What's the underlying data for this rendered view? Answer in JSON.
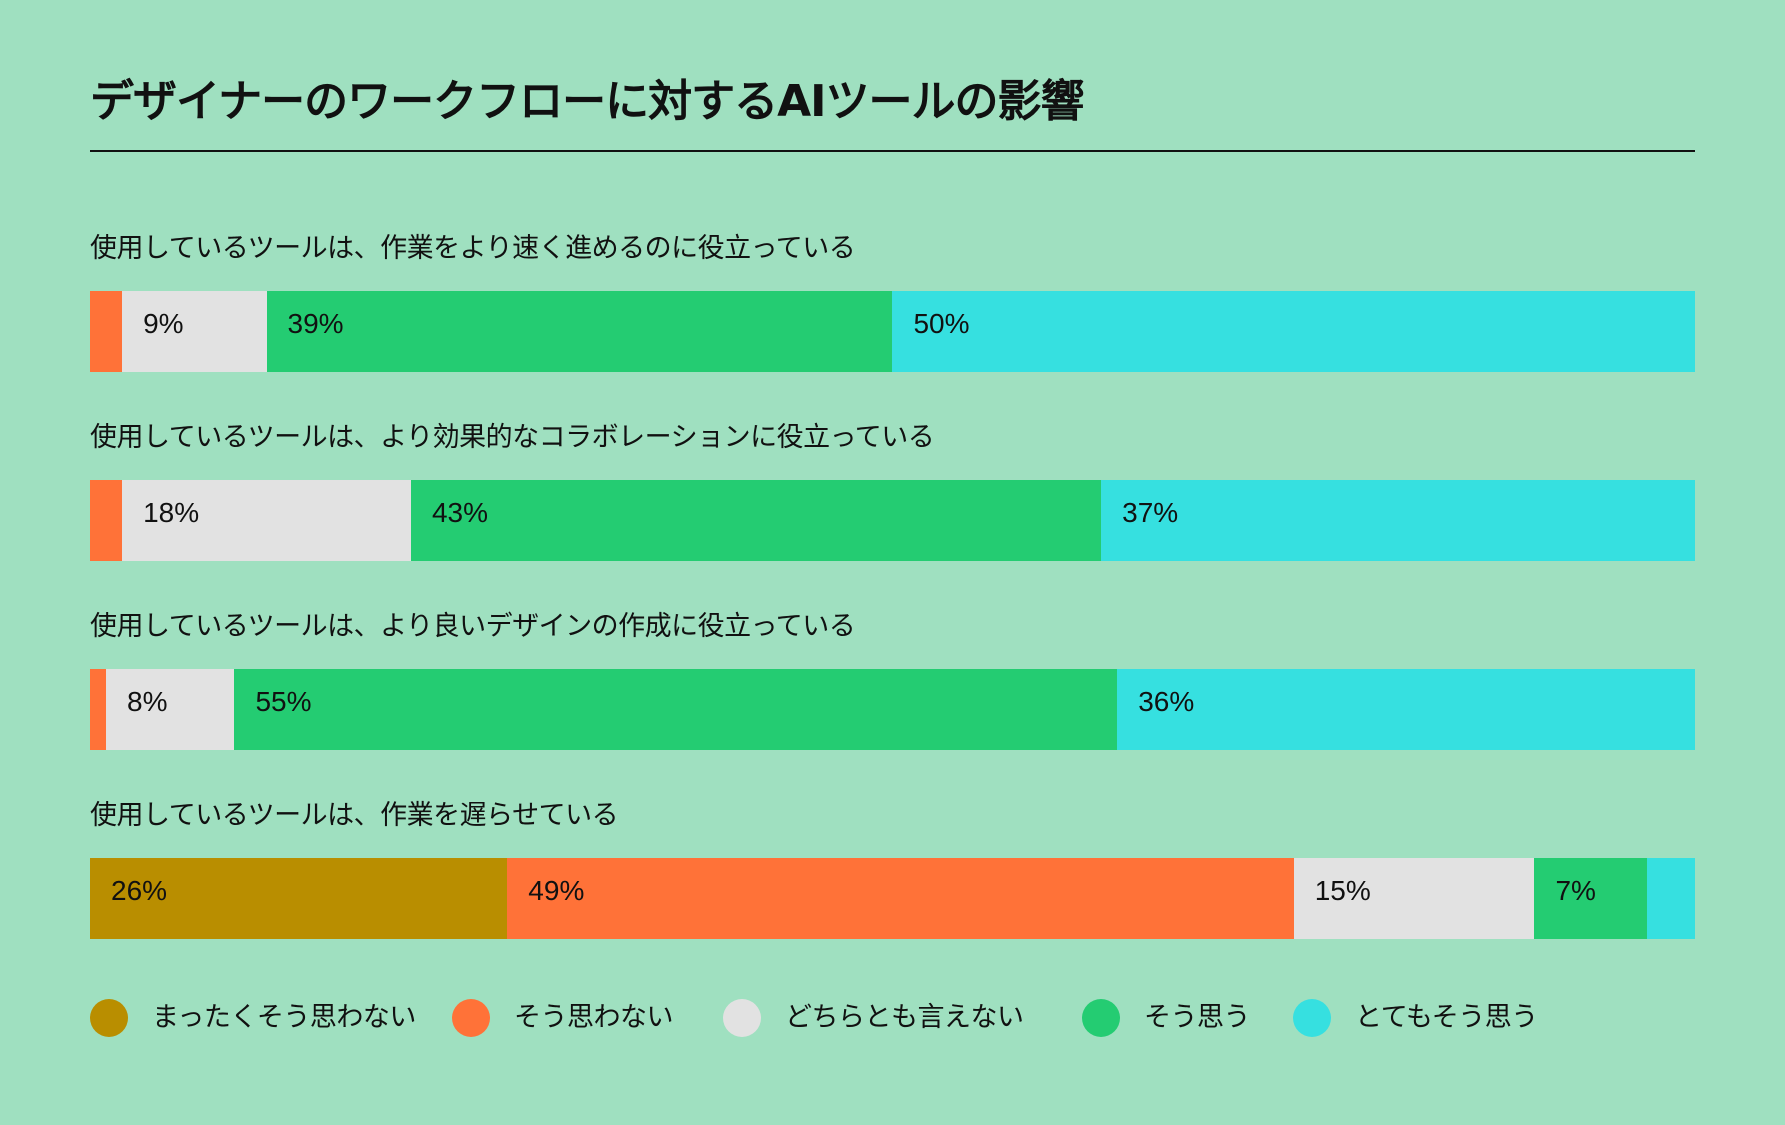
{
  "title": "デザイナーのワークフローに対するAIツールの影響",
  "colors": {
    "background": "#9fe0c0",
    "strongly_disagree": "#b98e00",
    "disagree": "#ff7238",
    "neutral": "#e2e2e2",
    "agree": "#24cc72",
    "strongly_agree": "#36e0e0"
  },
  "legend": [
    {
      "label": "まったくそう思わない",
      "color": "#b98e00"
    },
    {
      "label": "そう思わない",
      "color": "#ff7238"
    },
    {
      "label": "どちらとも言えない",
      "color": "#e2e2e2"
    },
    {
      "label": "そう思う",
      "color": "#24cc72"
    },
    {
      "label": "とてもそう思う",
      "color": "#36e0e0"
    }
  ],
  "questions": [
    {
      "label": "使用しているツールは、作業をより速く進めるのに役立っている",
      "segments": [
        {
          "key": "strongly_disagree",
          "value": 0,
          "text": ""
        },
        {
          "key": "disagree",
          "value": 2,
          "text": ""
        },
        {
          "key": "neutral",
          "value": 9,
          "text": "9%"
        },
        {
          "key": "agree",
          "value": 39,
          "text": "39%"
        },
        {
          "key": "strongly_agree",
          "value": 50,
          "text": "50%"
        }
      ]
    },
    {
      "label": "使用しているツールは、より効果的なコラボレーションに役立っている",
      "segments": [
        {
          "key": "strongly_disagree",
          "value": 0,
          "text": ""
        },
        {
          "key": "disagree",
          "value": 2,
          "text": ""
        },
        {
          "key": "neutral",
          "value": 18,
          "text": "18%"
        },
        {
          "key": "agree",
          "value": 43,
          "text": "43%"
        },
        {
          "key": "strongly_agree",
          "value": 37,
          "text": "37%"
        }
      ]
    },
    {
      "label": "使用しているツールは、より良いデザインの作成に役立っている",
      "segments": [
        {
          "key": "strongly_disagree",
          "value": 0,
          "text": ""
        },
        {
          "key": "disagree",
          "value": 1,
          "text": ""
        },
        {
          "key": "neutral",
          "value": 8,
          "text": "8%"
        },
        {
          "key": "agree",
          "value": 55,
          "text": "55%"
        },
        {
          "key": "strongly_agree",
          "value": 36,
          "text": "36%"
        }
      ]
    },
    {
      "label": "使用しているツールは、作業を遅らせている",
      "segments": [
        {
          "key": "strongly_disagree",
          "value": 26,
          "text": "26%"
        },
        {
          "key": "disagree",
          "value": 49,
          "text": "49%"
        },
        {
          "key": "neutral",
          "value": 15,
          "text": "15%"
        },
        {
          "key": "agree",
          "value": 7,
          "text": "7%"
        },
        {
          "key": "strongly_agree",
          "value": 3,
          "text": ""
        }
      ]
    }
  ],
  "chart_data": {
    "type": "bar",
    "orientation": "horizontal",
    "stacked": true,
    "normalized": true,
    "title": "デザイナーのワークフローに対するAIツールの影響",
    "xlabel": "",
    "ylabel": "",
    "xlim": [
      0,
      100
    ],
    "grid": false,
    "legend_position": "bottom",
    "categories": [
      "使用しているツールは、作業をより速く進めるのに役立っている",
      "使用しているツールは、より効果的なコラボレーションに役立っている",
      "使用しているツールは、より良いデザインの作成に役立っている",
      "使用しているツールは、作業を遅らせている"
    ],
    "series": [
      {
        "name": "まったくそう思わない",
        "color": "#b98e00",
        "values": [
          0,
          0,
          0,
          26
        ]
      },
      {
        "name": "そう思わない",
        "color": "#ff7238",
        "values": [
          2,
          2,
          1,
          49
        ]
      },
      {
        "name": "どちらとも言えない",
        "color": "#e2e2e2",
        "values": [
          9,
          18,
          8,
          15
        ]
      },
      {
        "name": "そう思う",
        "color": "#24cc72",
        "values": [
          39,
          43,
          55,
          7
        ]
      },
      {
        "name": "とてもそう思う",
        "color": "#36e0e0",
        "values": [
          50,
          37,
          36,
          3
        ]
      }
    ],
    "data_labels_shown": [
      [
        "",
        "",
        "9%",
        "39%",
        "50%"
      ],
      [
        "",
        "",
        "18%",
        "43%",
        "37%"
      ],
      [
        "",
        "",
        "8%",
        "55%",
        "36%"
      ],
      [
        "26%",
        "49%",
        "15%",
        "7%",
        ""
      ]
    ]
  }
}
